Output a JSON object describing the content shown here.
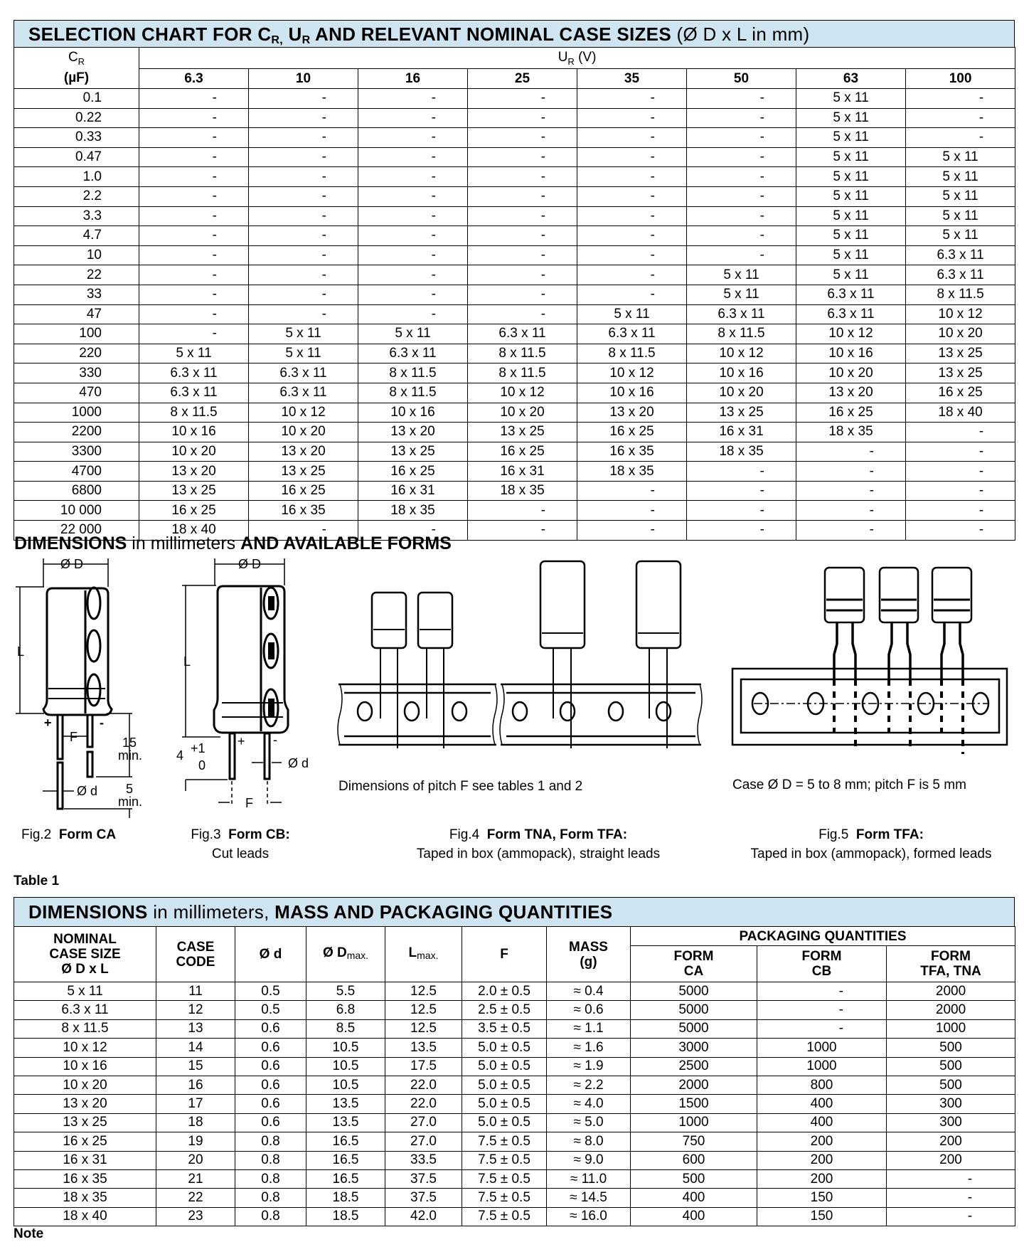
{
  "selection_chart": {
    "title": {
      "p1": "SELECTION CHART FOR C",
      "s1": "R,",
      "p2": " U",
      "s2": "R",
      "p3": " AND RELEVANT NOMINAL CASE SIZES",
      "p4": " (Ø D x L in mm)"
    },
    "cr_header": {
      "symbol": "C",
      "sub": "R",
      "unit": "(µF)"
    },
    "ur_header": {
      "symbol": "U",
      "sub": "R",
      "unit": " (V)"
    },
    "voltages": [
      "6.3",
      "10",
      "16",
      "25",
      "35",
      "50",
      "63",
      "100"
    ],
    "rows": [
      {
        "cr": "0.1",
        "cells": [
          "-",
          "-",
          "-",
          "-",
          "-",
          "-",
          "5 x 11",
          "-"
        ]
      },
      {
        "cr": "0.22",
        "cells": [
          "-",
          "-",
          "-",
          "-",
          "-",
          "-",
          "5 x 11",
          "-"
        ]
      },
      {
        "cr": "0.33",
        "cells": [
          "-",
          "-",
          "-",
          "-",
          "-",
          "-",
          "5 x 11",
          "-"
        ]
      },
      {
        "cr": "0.47",
        "cells": [
          "-",
          "-",
          "-",
          "-",
          "-",
          "-",
          "5 x 11",
          "5 x 11"
        ]
      },
      {
        "cr": "1.0",
        "cells": [
          "-",
          "-",
          "-",
          "-",
          "-",
          "-",
          "5 x 11",
          "5 x 11"
        ]
      },
      {
        "cr": "2.2",
        "cells": [
          "-",
          "-",
          "-",
          "-",
          "-",
          "-",
          "5 x 11",
          "5 x 11"
        ]
      },
      {
        "cr": "3.3",
        "cells": [
          "-",
          "-",
          "-",
          "-",
          "-",
          "-",
          "5 x 11",
          "5 x 11"
        ]
      },
      {
        "cr": "4.7",
        "cells": [
          "-",
          "-",
          "-",
          "-",
          "-",
          "-",
          "5 x 11",
          "5 x 11"
        ]
      },
      {
        "cr": "10",
        "cells": [
          "-",
          "-",
          "-",
          "-",
          "-",
          "-",
          "5 x 11",
          "6.3 x 11"
        ]
      },
      {
        "cr": "22",
        "cells": [
          "-",
          "-",
          "-",
          "-",
          "-",
          "5 x 11",
          "5 x 11",
          "6.3 x 11"
        ]
      },
      {
        "cr": "33",
        "cells": [
          "-",
          "-",
          "-",
          "-",
          "-",
          "5 x 11",
          "6.3 x 11",
          "8 x 11.5"
        ]
      },
      {
        "cr": "47",
        "cells": [
          "-",
          "-",
          "-",
          "-",
          "5 x 11",
          "6.3 x 11",
          "6.3 x 11",
          "10 x 12"
        ]
      },
      {
        "cr": "100",
        "cells": [
          "-",
          "5 x 11",
          "5 x 11",
          "6.3 x 11",
          "6.3 x 11",
          "8 x 11.5",
          "10 x 12",
          "10 x 20"
        ]
      },
      {
        "cr": "220",
        "cells": [
          "5 x 11",
          "5 x 11",
          "6.3 x 11",
          "8 x 11.5",
          "8 x 11.5",
          "10 x 12",
          "10 x 16",
          "13 x 25"
        ]
      },
      {
        "cr": "330",
        "cells": [
          "6.3 x 11",
          "6.3 x 11",
          "8 x 11.5",
          "8 x 11.5",
          "10 x 12",
          "10 x 16",
          "10 x 20",
          "13 x 25"
        ]
      },
      {
        "cr": "470",
        "cells": [
          "6.3 x 11",
          "6.3 x 11",
          "8 x 11.5",
          "10 x 12",
          "10 x 16",
          "10 x 20",
          "13 x 20",
          "16 x 25"
        ]
      },
      {
        "cr": "1000",
        "cells": [
          "8 x 11.5",
          "10 x 12",
          "10 x 16",
          "10 x 20",
          "13 x 20",
          "13 x 25",
          "16 x 25",
          "18 x 40"
        ]
      },
      {
        "cr": "2200",
        "cells": [
          "10 x 16",
          "10 x 20",
          "13 x 20",
          "13 x 25",
          "16 x 25",
          "16 x 31",
          "18 x 35",
          "-"
        ]
      },
      {
        "cr": "3300",
        "cells": [
          "10 x 20",
          "13 x 20",
          "13 x 25",
          "16 x 25",
          "16 x 35",
          "18 x 35",
          "-",
          "-"
        ]
      },
      {
        "cr": "4700",
        "cells": [
          "13 x 20",
          "13 x 25",
          "16 x 25",
          "16 x 31",
          "18 x 35",
          "-",
          "-",
          "-"
        ]
      },
      {
        "cr": "6800",
        "cells": [
          "13 x 25",
          "16 x 25",
          "16 x 31",
          "18 x 35",
          "-",
          "-",
          "-",
          "-"
        ]
      },
      {
        "cr": "10 000",
        "cells": [
          "16 x 25",
          "16 x 35",
          "18 x 35",
          "-",
          "-",
          "-",
          "-",
          "-"
        ]
      },
      {
        "cr": "22 000",
        "cells": [
          "18 x 40",
          "-",
          "-",
          "-",
          "-",
          "-",
          "-",
          "-"
        ]
      }
    ]
  },
  "dimensions_section": {
    "heading_bold1": "DIMENSIONS",
    "heading_thin": " in millimeters ",
    "heading_bold2": "AND AVAILABLE FORMS",
    "labels": {
      "dia_D": "Ø D",
      "L": "L",
      "F": "F",
      "plus": "+",
      "minus": "-",
      "min15_a": "15",
      "min15_b": "min.",
      "min5_a": "5",
      "min5_b": "min.",
      "dia_d": "Ø d",
      "cut_4": "4",
      "cut_plus1": "+1",
      "cut_0": "0"
    },
    "fig4_note": "Dimensions of pitch F see tables 1 and 2",
    "fig5_note": "Case Ø D = 5 to 8 mm; pitch F is 5 mm",
    "figures": [
      {
        "num": "Fig.2",
        "title": "Form CA",
        "desc": ""
      },
      {
        "num": "Fig.3",
        "title": "Form CB:",
        "desc": "Cut leads"
      },
      {
        "num": "Fig.4",
        "title": "Form TNA, Form TFA:",
        "desc": "Taped in box (ammopack), straight leads"
      },
      {
        "num": "Fig.5",
        "title": "Form TFA:",
        "desc": "Taped in box (ammopack), formed leads"
      }
    ]
  },
  "table1": {
    "label": "Table 1",
    "title": {
      "bold1": "DIMENSIONS",
      "thin": " in millimeters, ",
      "bold2": "MASS AND PACKAGING QUANTITIES"
    },
    "headers": {
      "nominal": [
        "NOMINAL",
        "CASE SIZE",
        "Ø D x L"
      ],
      "case_code": [
        "CASE",
        "CODE"
      ],
      "d": "Ø d",
      "dmax": {
        "main": "Ø D",
        "sub": "max."
      },
      "lmax": {
        "main": "L",
        "sub": "max."
      },
      "f": "F",
      "mass": [
        "MASS",
        "(g)"
      ],
      "packaging": "PACKAGING QUANTITIES",
      "form_ca": [
        "FORM",
        "CA"
      ],
      "form_cb": [
        "FORM",
        "CB"
      ],
      "form_tfa": [
        "FORM",
        "TFA, TNA"
      ]
    },
    "rows": [
      [
        "5 x 11",
        "11",
        "0.5",
        "5.5",
        "12.5",
        "2.0 ± 0.5",
        "≈ 0.4",
        "5000",
        "-",
        "2000"
      ],
      [
        "6.3 x 11",
        "12",
        "0.5",
        "6.8",
        "12.5",
        "2.5 ± 0.5",
        "≈ 0.6",
        "5000",
        "-",
        "2000"
      ],
      [
        "8 x 11.5",
        "13",
        "0.6",
        "8.5",
        "12.5",
        "3.5 ± 0.5",
        "≈ 1.1",
        "5000",
        "-",
        "1000"
      ],
      [
        "10 x 12",
        "14",
        "0.6",
        "10.5",
        "13.5",
        "5.0 ± 0.5",
        "≈ 1.6",
        "3000",
        "1000",
        "500"
      ],
      [
        "10 x 16",
        "15",
        "0.6",
        "10.5",
        "17.5",
        "5.0 ± 0.5",
        "≈ 1.9",
        "2500",
        "1000",
        "500"
      ],
      [
        "10 x 20",
        "16",
        "0.6",
        "10.5",
        "22.0",
        "5.0 ± 0.5",
        "≈ 2.2",
        "2000",
        "800",
        "500"
      ],
      [
        "13 x 20",
        "17",
        "0.6",
        "13.5",
        "22.0",
        "5.0 ± 0.5",
        "≈ 4.0",
        "1500",
        "400",
        "300"
      ],
      [
        "13 x 25",
        "18",
        "0.6",
        "13.5",
        "27.0",
        "5.0 ± 0.5",
        "≈ 5.0",
        "1000",
        "400",
        "300"
      ],
      [
        "16 x 25",
        "19",
        "0.8",
        "16.5",
        "27.0",
        "7.5 ± 0.5",
        "≈ 8.0",
        "750",
        "200",
        "200"
      ],
      [
        "16 x 31",
        "20",
        "0.8",
        "16.5",
        "33.5",
        "7.5 ± 0.5",
        "≈ 9.0",
        "600",
        "200",
        "200"
      ],
      [
        "16 x 35",
        "21",
        "0.8",
        "16.5",
        "37.5",
        "7.5 ± 0.5",
        "≈ 11.0",
        "500",
        "200",
        "-"
      ],
      [
        "18 x 35",
        "22",
        "0.8",
        "18.5",
        "37.5",
        "7.5 ± 0.5",
        "≈ 14.5",
        "400",
        "150",
        "-"
      ],
      [
        "18 x 40",
        "23",
        "0.8",
        "18.5",
        "42.0",
        "7.5 ± 0.5",
        "≈ 16.0",
        "400",
        "150",
        "-"
      ]
    ],
    "note": "Note"
  },
  "colors": {
    "title_bar_bg": "#cfe4f1",
    "lines": "#000000"
  }
}
